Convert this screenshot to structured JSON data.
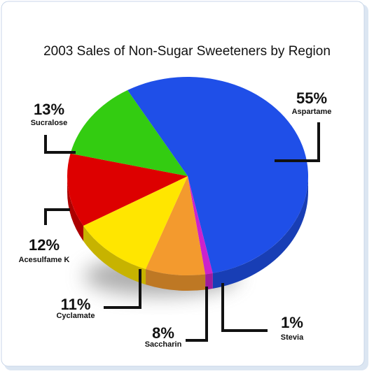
{
  "chart_data": {
    "type": "pie",
    "title": "2003 Sales of Non-Sugar Sweeteners by Region",
    "categories": [
      "Aspartame",
      "Stevia",
      "Saccharin",
      "Cyclamate",
      "Acesulfame K",
      "Sucralose"
    ],
    "values": [
      55,
      1,
      8,
      11,
      12,
      13
    ],
    "value_labels": [
      "55%",
      "1%",
      "8%",
      "11%",
      "12%",
      "13%"
    ],
    "colors": [
      "#1f4fe8",
      "#cc22cc",
      "#f39a2e",
      "#ffe600",
      "#dd0000",
      "#33cc11"
    ]
  }
}
